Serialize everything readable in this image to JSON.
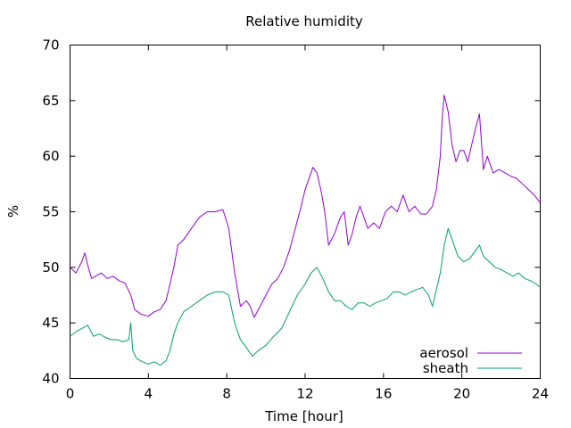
{
  "chart_data": {
    "type": "line",
    "title": "Relative humidity",
    "xlabel": "Time [hour]",
    "ylabel": "%",
    "xlim": [
      0,
      24
    ],
    "ylim": [
      40,
      70
    ],
    "xticks": [
      0,
      4,
      8,
      12,
      16,
      20,
      24
    ],
    "yticks": [
      40,
      45,
      50,
      55,
      60,
      65,
      70
    ],
    "grid": false,
    "legend_position": "bottom-right",
    "series": [
      {
        "name": "aerosol",
        "color": "#9400d3",
        "x": [
          0,
          0.3,
          0.6,
          0.75,
          0.9,
          1.1,
          1.3,
          1.6,
          1.9,
          2.2,
          2.5,
          2.8,
          3.1,
          3.3,
          3.6,
          4.0,
          4.3,
          4.6,
          4.9,
          5.1,
          5.3,
          5.5,
          5.8,
          6.2,
          6.6,
          7.0,
          7.4,
          7.8,
          8.1,
          8.4,
          8.7,
          9.0,
          9.2,
          9.4,
          9.7,
          10.0,
          10.3,
          10.6,
          10.9,
          11.2,
          11.5,
          11.8,
          12.0,
          12.2,
          12.4,
          12.6,
          12.8,
          13.0,
          13.2,
          13.5,
          13.8,
          14.0,
          14.2,
          14.4,
          14.6,
          14.8,
          15.0,
          15.2,
          15.5,
          15.8,
          16.1,
          16.4,
          16.7,
          17.0,
          17.3,
          17.6,
          17.9,
          18.2,
          18.5,
          18.7,
          18.9,
          19.0,
          19.1,
          19.3,
          19.5,
          19.7,
          19.9,
          20.1,
          20.3,
          20.5,
          20.7,
          20.9,
          21.1,
          21.3,
          21.6,
          21.9,
          22.2,
          22.5,
          22.8,
          23.1,
          23.4,
          23.7,
          24.0
        ],
        "values": [
          50.0,
          49.5,
          50.5,
          51.3,
          50.2,
          49.0,
          49.2,
          49.5,
          49.0,
          49.2,
          48.8,
          48.6,
          47.5,
          46.2,
          45.8,
          45.6,
          46.0,
          46.2,
          47.0,
          48.5,
          50.0,
          52.0,
          52.5,
          53.5,
          54.5,
          55.0,
          55.0,
          55.2,
          53.5,
          49.5,
          46.5,
          47.0,
          46.5,
          45.5,
          46.5,
          47.5,
          48.5,
          49.0,
          50.0,
          51.5,
          53.5,
          55.5,
          57.0,
          58.0,
          59.0,
          58.5,
          57.0,
          55.0,
          52.0,
          53.0,
          54.5,
          55.0,
          52.0,
          53.0,
          54.5,
          55.5,
          54.5,
          53.5,
          54.0,
          53.5,
          55.0,
          55.5,
          55.0,
          56.5,
          55.0,
          55.5,
          54.8,
          54.8,
          55.5,
          57.0,
          60.0,
          63.5,
          65.5,
          64.0,
          61.0,
          59.5,
          60.5,
          60.5,
          59.5,
          61.0,
          62.5,
          63.8,
          58.8,
          60.0,
          58.5,
          58.8,
          58.5,
          58.2,
          58.0,
          57.5,
          57.0,
          56.5,
          55.8
        ]
      },
      {
        "name": "sheath",
        "color": "#009e73",
        "x": [
          0,
          0.3,
          0.6,
          0.9,
          1.2,
          1.5,
          1.8,
          2.1,
          2.4,
          2.7,
          3.0,
          3.1,
          3.2,
          3.4,
          3.7,
          4.0,
          4.3,
          4.6,
          4.9,
          5.1,
          5.3,
          5.5,
          5.8,
          6.2,
          6.6,
          7.0,
          7.4,
          7.8,
          8.1,
          8.4,
          8.7,
          9.0,
          9.3,
          9.6,
          10.0,
          10.4,
          10.8,
          11.2,
          11.6,
          12.0,
          12.3,
          12.6,
          12.9,
          13.2,
          13.5,
          13.8,
          14.1,
          14.4,
          14.7,
          15.0,
          15.3,
          15.6,
          15.9,
          16.2,
          16.5,
          16.8,
          17.1,
          17.4,
          17.7,
          18.0,
          18.3,
          18.5,
          18.7,
          18.9,
          19.1,
          19.3,
          19.5,
          19.8,
          20.1,
          20.4,
          20.7,
          20.9,
          21.1,
          21.4,
          21.7,
          22.0,
          22.3,
          22.6,
          22.9,
          23.2,
          23.5,
          23.8,
          24.0
        ],
        "values": [
          43.8,
          44.2,
          44.5,
          44.8,
          43.8,
          44.0,
          43.7,
          43.5,
          43.5,
          43.3,
          43.5,
          45.0,
          42.5,
          41.8,
          41.5,
          41.3,
          41.5,
          41.2,
          41.6,
          42.5,
          44.0,
          45.0,
          46.0,
          46.5,
          47.0,
          47.5,
          47.8,
          47.8,
          47.5,
          45.0,
          43.5,
          42.8,
          42.0,
          42.5,
          43.0,
          43.8,
          44.5,
          46.0,
          47.5,
          48.5,
          49.5,
          50.0,
          49.0,
          47.8,
          47.0,
          47.0,
          46.5,
          46.2,
          46.8,
          46.8,
          46.5,
          46.8,
          47.0,
          47.2,
          47.8,
          47.8,
          47.5,
          47.8,
          48.0,
          48.2,
          47.5,
          46.5,
          48.0,
          49.5,
          52.0,
          53.5,
          52.5,
          51.0,
          50.5,
          50.8,
          51.5,
          52.0,
          51.0,
          50.5,
          50.0,
          49.8,
          49.5,
          49.2,
          49.5,
          49.0,
          48.8,
          48.5,
          48.2
        ]
      }
    ]
  }
}
